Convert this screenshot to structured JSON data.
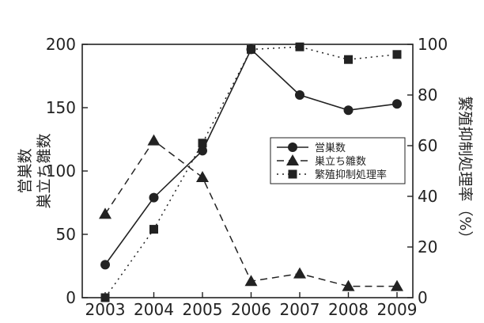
{
  "chart_data": {
    "type": "line",
    "categories": [
      "2003",
      "2004",
      "2005",
      "2006",
      "2007",
      "2008",
      "2009"
    ],
    "left_axis": {
      "label_lines": [
        "営巣数",
        "巣立ち雛数"
      ],
      "ylim": [
        0,
        200
      ],
      "ticks": [
        "0",
        "50",
        "100",
        "150",
        "200"
      ]
    },
    "right_axis": {
      "label": "繁殖抑制処理率（%）",
      "ylim": [
        0,
        100
      ],
      "ticks": [
        "0",
        "20",
        "40",
        "60",
        "80",
        "100"
      ]
    },
    "series": [
      {
        "name": "営巣数",
        "axis": "left",
        "marker": "circle",
        "line_style": "solid",
        "values": [
          26,
          79,
          116,
          196,
          160,
          148,
          153
        ]
      },
      {
        "name": "巣立ち雛数",
        "axis": "left",
        "marker": "triangle",
        "line_style": "dashed",
        "values": [
          66,
          124,
          95,
          13,
          19,
          9,
          9
        ]
      },
      {
        "name": "繁殖抑制処理率",
        "axis": "right",
        "marker": "square",
        "line_style": "dotted",
        "values": [
          0,
          27,
          61,
          98,
          99,
          94,
          96
        ]
      }
    ],
    "grid": false,
    "legend_position": "center-right",
    "colors": {
      "series": "#222222",
      "axis": "#222222",
      "background": "#ffffff"
    }
  }
}
